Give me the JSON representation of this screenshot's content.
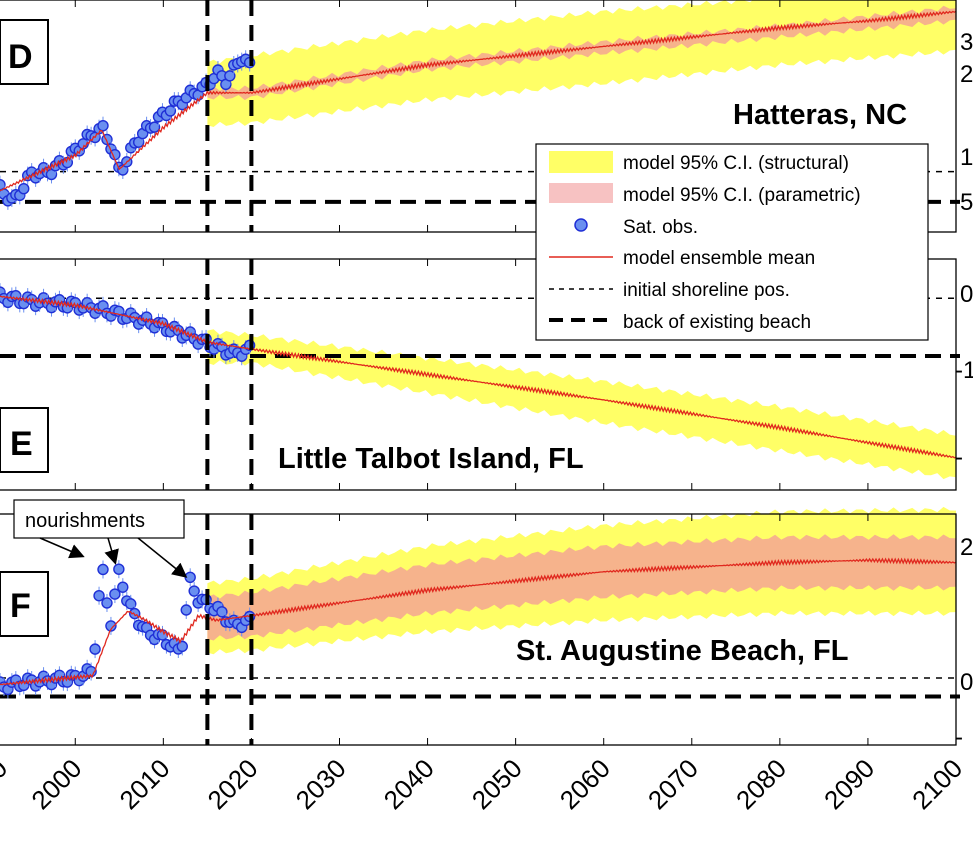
{
  "colors": {
    "structural_ci": "#ffff66",
    "parametric_ci": "#f6b38c",
    "sat_obs_fill": "#6a8ff0",
    "sat_obs_edge": "#1f2fd6",
    "model_mean": "#e0281e",
    "dashed": "#000000"
  },
  "chart_data": [
    {
      "type": "line",
      "panel_label": "D",
      "site": "Hatteras, NC",
      "xlim": [
        1991,
        2100
      ],
      "ylim": [
        0,
        1
      ],
      "xticks": [
        2000,
        2010,
        2020,
        2030,
        2040,
        2050,
        2060,
        2070,
        2080,
        2090,
        2100
      ],
      "vlines": [
        2015,
        2020
      ],
      "initial_shoreline": 0.26,
      "back_of_beach": 0.13,
      "obs": {
        "x": [
          1991,
          1993,
          1995,
          1997,
          1999,
          2001,
          2003,
          2004,
          2005,
          2006,
          2007,
          2009,
          2011,
          2013,
          2015,
          2016,
          2017,
          2018,
          2019,
          2020
        ],
        "y": [
          0.2,
          0.13,
          0.25,
          0.26,
          0.31,
          0.39,
          0.45,
          0.38,
          0.26,
          0.32,
          0.4,
          0.47,
          0.54,
          0.59,
          0.63,
          0.69,
          0.65,
          0.7,
          0.76,
          0.7
        ]
      },
      "mean": {
        "x": [
          1991,
          2000,
          2003,
          2005,
          2010,
          2015,
          2020,
          2030,
          2040,
          2050,
          2060,
          2070,
          2080,
          2090,
          2100
        ],
        "y": [
          0.17,
          0.33,
          0.44,
          0.27,
          0.45,
          0.6,
          0.6,
          0.66,
          0.72,
          0.76,
          0.8,
          0.84,
          0.88,
          0.91,
          0.95
        ]
      },
      "ci_structural": {
        "x": [
          2015,
          2020,
          2040,
          2060,
          2080,
          2100
        ],
        "lower": [
          0.46,
          0.47,
          0.57,
          0.64,
          0.72,
          0.78
        ],
        "upper": [
          0.73,
          0.76,
          0.87,
          0.95,
          1.01,
          1.08
        ]
      },
      "ci_parametric": {
        "x": [
          2015,
          2020,
          2040,
          2060,
          2080,
          2100
        ],
        "lower": [
          0.58,
          0.58,
          0.7,
          0.77,
          0.84,
          0.91
        ],
        "upper": [
          0.62,
          0.62,
          0.74,
          0.82,
          0.89,
          0.97
        ]
      },
      "right_ticks": [
        "3",
        "2",
        "1",
        "5"
      ]
    },
    {
      "type": "line",
      "panel_label": "E",
      "site": "Little Talbot Island, FL",
      "xlim": [
        1991,
        2100
      ],
      "ylim": [
        0,
        1
      ],
      "vlines": [
        2015,
        2020
      ],
      "initial_shoreline": 0.83,
      "back_of_beach": 0.58,
      "obs": {
        "x": [
          1991,
          1994,
          1997,
          2000,
          2003,
          2006,
          2009,
          2012,
          2014,
          2016,
          2018,
          2020
        ],
        "y": [
          0.84,
          0.82,
          0.81,
          0.8,
          0.78,
          0.75,
          0.72,
          0.68,
          0.65,
          0.62,
          0.59,
          0.61
        ]
      },
      "mean": {
        "x": [
          1991,
          2000,
          2010,
          2015,
          2020,
          2040,
          2060,
          2080,
          2100
        ],
        "y": [
          0.84,
          0.8,
          0.72,
          0.64,
          0.61,
          0.5,
          0.39,
          0.27,
          0.14
        ]
      },
      "ci_structural": {
        "x": [
          2015,
          2020,
          2040,
          2060,
          2080,
          2100
        ],
        "lower": [
          0.55,
          0.55,
          0.42,
          0.29,
          0.17,
          0.05
        ],
        "upper": [
          0.69,
          0.67,
          0.57,
          0.47,
          0.36,
          0.24
        ]
      },
      "right_ticks": [
        "0",
        "-1",
        "-"
      ]
    },
    {
      "type": "line",
      "panel_label": "F",
      "site": "St. Augustine Beach, FL",
      "xlim": [
        1991,
        2100
      ],
      "ylim": [
        0,
        1
      ],
      "vlines": [
        2015,
        2020
      ],
      "initial_shoreline": 0.29,
      "back_of_beach": 0.21,
      "obs": {
        "x": [
          1991,
          1994,
          1997,
          2000,
          2002,
          2003,
          2004,
          2005,
          2006,
          2007,
          2008,
          2010,
          2012,
          2013,
          2014,
          2016,
          2018,
          2020
        ],
        "y": [
          0.25,
          0.27,
          0.28,
          0.29,
          0.32,
          0.78,
          0.52,
          0.76,
          0.61,
          0.55,
          0.49,
          0.46,
          0.4,
          0.71,
          0.63,
          0.59,
          0.52,
          0.54
        ]
      },
      "mean": {
        "x": [
          1991,
          2002,
          2004,
          2006,
          2008,
          2010,
          2012,
          2014,
          2016,
          2020,
          2040,
          2060,
          2080,
          2090,
          2100
        ],
        "y": [
          0.26,
          0.3,
          0.5,
          0.58,
          0.54,
          0.49,
          0.45,
          0.56,
          0.54,
          0.56,
          0.67,
          0.75,
          0.79,
          0.8,
          0.79
        ]
      },
      "ci_structural": {
        "x": [
          2015,
          2020,
          2040,
          2060,
          2080,
          2100
        ],
        "lower": [
          0.4,
          0.41,
          0.49,
          0.54,
          0.57,
          0.57
        ],
        "upper": [
          0.7,
          0.72,
          0.86,
          0.95,
          1.01,
          1.02
        ]
      },
      "ci_parametric": {
        "x": [
          2015,
          2020,
          2040,
          2060,
          2080,
          2100
        ],
        "lower": [
          0.46,
          0.47,
          0.57,
          0.64,
          0.68,
          0.68
        ],
        "upper": [
          0.64,
          0.66,
          0.78,
          0.86,
          0.9,
          0.9
        ]
      },
      "right_ticks": [
        "2",
        "0",
        "-"
      ]
    }
  ],
  "legend": {
    "items": [
      {
        "key": "structural",
        "label": "model 95% C.I. (structural)"
      },
      {
        "key": "parametric",
        "label": "model 95% C.I. (parametric)"
      },
      {
        "key": "obs",
        "label": "Sat. obs."
      },
      {
        "key": "mean",
        "label": "model ensemble mean"
      },
      {
        "key": "initial",
        "label": "initial shoreline pos."
      },
      {
        "key": "back",
        "label": "back of existing beach"
      }
    ]
  },
  "annotation": {
    "label": "nourishments",
    "arrow_targets": [
      2003,
      2005,
      2013
    ]
  }
}
